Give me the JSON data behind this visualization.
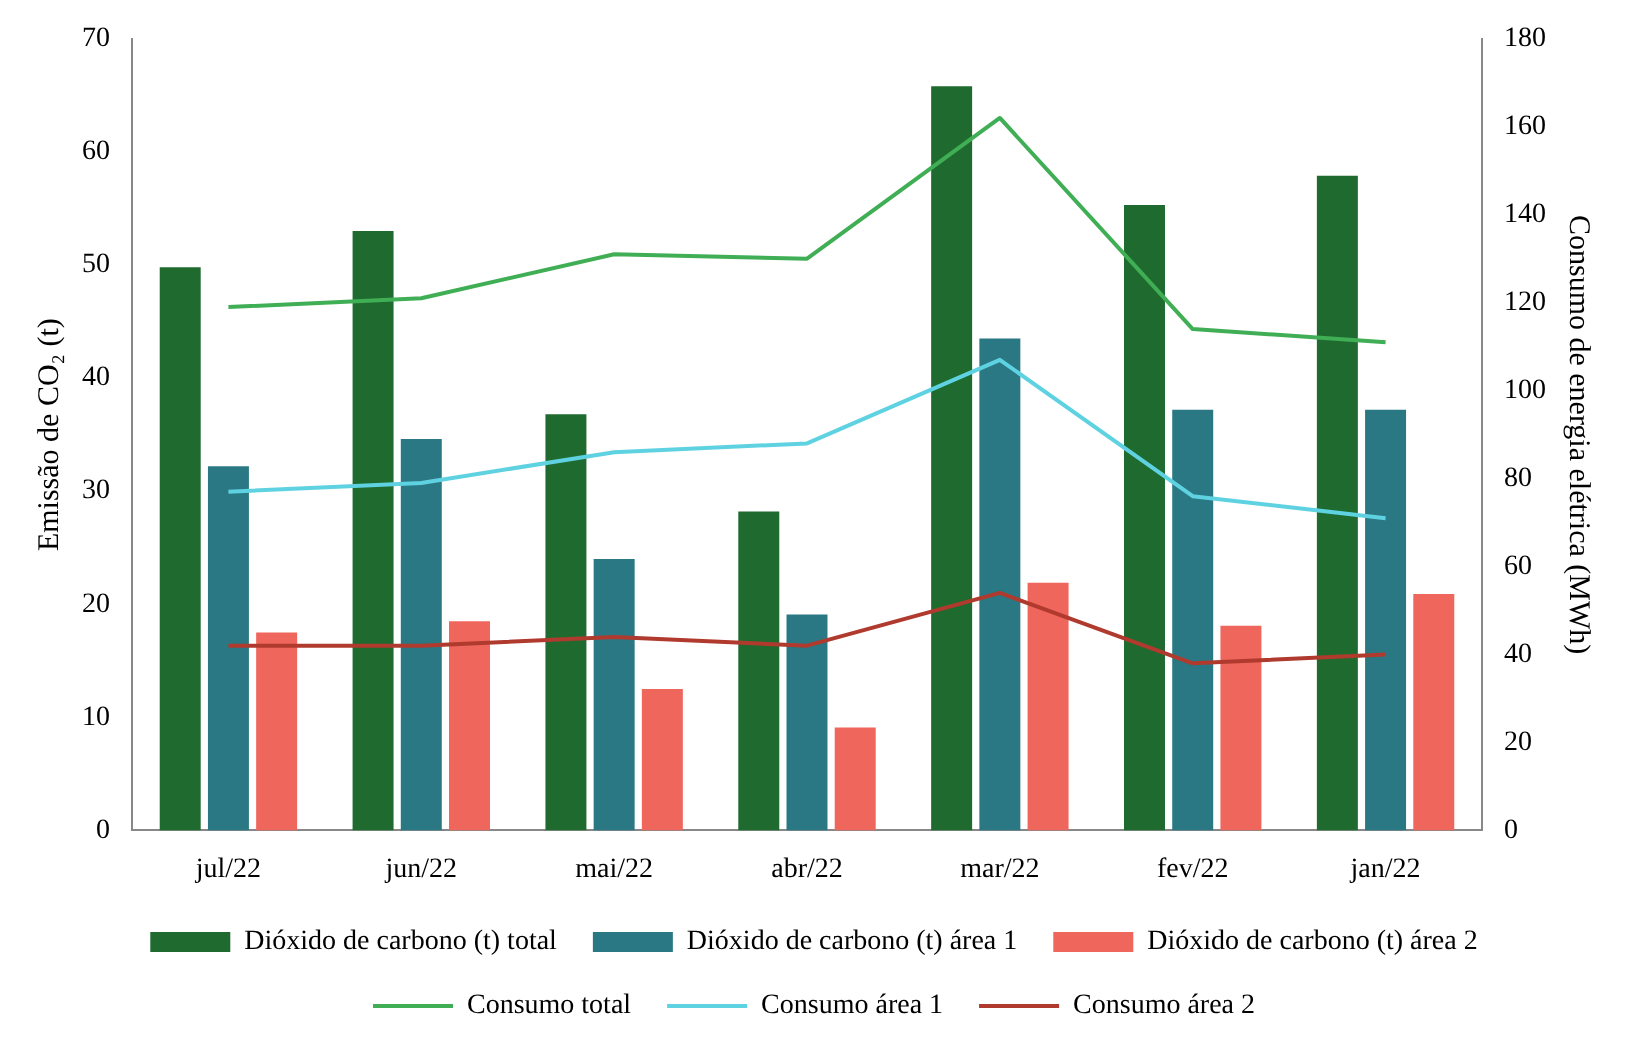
{
  "chart_data": {
    "type": "bar",
    "ylabel": "Emissão de CO₂ (t)",
    "y2label": "Consumo de energia elétrica (MWh)",
    "categories": [
      "jul/22",
      "jun/22",
      "mai/22",
      "abr/22",
      "mar/22",
      "fev/22",
      "jan/22"
    ],
    "series": [
      {
        "name": "Dióxido de carbono (t) total",
        "color": "#1f6b2f",
        "values": [
          49.8,
          53,
          36.8,
          28.2,
          65.8,
          55.3,
          57.9
        ]
      },
      {
        "name": "Dióxido de carbono (t) área 1",
        "color": "#2a7883",
        "values": [
          32.2,
          34.6,
          24,
          19.1,
          43.5,
          37.2,
          37.2
        ]
      },
      {
        "name": "Dióxido de carbono (t) área 2",
        "color": "#ef665c",
        "values": [
          17.5,
          18.5,
          12.5,
          9.1,
          21.9,
          18.1,
          20.9
        ]
      },
      {
        "name": "Consumo total",
        "type": "line",
        "axis": "y2",
        "color": "#3fae55",
        "values": [
          119,
          121,
          131,
          130,
          162,
          114,
          111
        ]
      },
      {
        "name": "Consumo área 1",
        "type": "line",
        "axis": "y2",
        "color": "#5fd2e2",
        "values": [
          77,
          79,
          86,
          88,
          107,
          76,
          71
        ]
      },
      {
        "name": "Consumo área 2",
        "type": "line",
        "axis": "y2",
        "color": "#b03a2e",
        "values": [
          42,
          42,
          44,
          42,
          54,
          38,
          40
        ]
      }
    ],
    "ylim": [
      0,
      70
    ],
    "yticks": [
      0,
      10,
      20,
      30,
      40,
      50,
      60,
      70
    ],
    "y2lim": [
      0,
      180
    ],
    "y2ticks": [
      0,
      20,
      40,
      60,
      80,
      100,
      120,
      140,
      160,
      180
    ],
    "grid": false,
    "legend": "bottom",
    "marker": "none"
  }
}
